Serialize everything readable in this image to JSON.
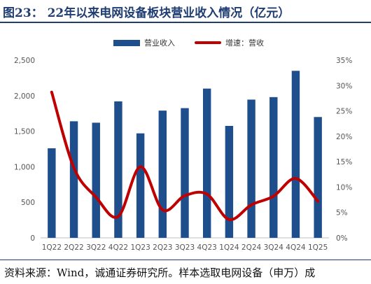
{
  "title": "图23：  22年以来电网设备板块营业收入情况（亿元）",
  "footer": "资料来源：Wind，诚通证券研究所。样本选取电网设备（申万）成",
  "colors": {
    "bar": "#1f4e8c",
    "line": "#c00000",
    "title": "#1f3d73"
  },
  "legend": {
    "bar_label": "营业收入",
    "line_label": "增速：营收"
  },
  "chart_data": {
    "type": "bar",
    "categories": [
      "1Q22",
      "2Q22",
      "3Q22",
      "4Q22",
      "1Q23",
      "2Q23",
      "3Q23",
      "4Q23",
      "1Q24",
      "2Q24",
      "3Q24",
      "4Q24",
      "1Q25"
    ],
    "series": [
      {
        "name": "营业收入",
        "type": "bar",
        "axis": "left",
        "values": [
          1260,
          1640,
          1620,
          1920,
          1470,
          1790,
          1825,
          2100,
          1575,
          1945,
          1980,
          2350,
          1700
        ]
      },
      {
        "name": "增速：营收",
        "type": "line",
        "axis": "right",
        "values": [
          28.7,
          13.8,
          8.0,
          4.2,
          14.0,
          5.5,
          8.3,
          8.6,
          3.6,
          6.5,
          8.2,
          11.7,
          7.2
        ]
      }
    ],
    "left_axis": {
      "ylim": [
        0,
        2500
      ],
      "ticks": [
        "0",
        "500",
        "1,000",
        "1,500",
        "2,000",
        "2,500"
      ]
    },
    "right_axis": {
      "ylim": [
        0,
        35
      ],
      "ticks": [
        "0%",
        "5%",
        "10%",
        "15%",
        "20%",
        "25%",
        "30%",
        "35%"
      ]
    },
    "legend_position": "top"
  }
}
